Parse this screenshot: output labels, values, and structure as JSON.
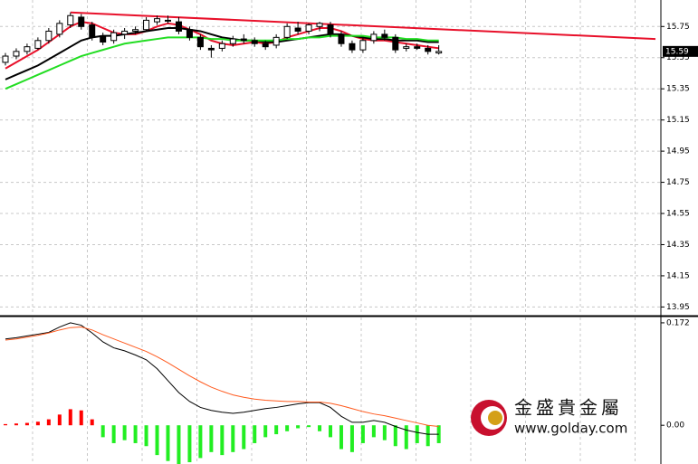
{
  "chart_data": [
    {
      "type": "candlestick",
      "xlim": [
        -0.5,
        60.5
      ],
      "ylim": [
        13.9,
        15.92
      ],
      "yticks": [
        15.75,
        15.55,
        15.35,
        15.15,
        14.95,
        14.75,
        14.55,
        14.35,
        14.15,
        13.95
      ],
      "grid": true,
      "up_color": "#ffffff",
      "down_color": "#000000",
      "wick_color": "#000000",
      "open": [
        15.52,
        15.56,
        15.59,
        15.61,
        15.66,
        15.7,
        15.76,
        15.81,
        15.76,
        15.69,
        15.66,
        15.7,
        15.72,
        15.73,
        15.78,
        15.79,
        15.78,
        15.73,
        15.68,
        15.61,
        15.61,
        15.64,
        15.67,
        15.66,
        15.64,
        15.63,
        15.68,
        15.74,
        15.72,
        15.75,
        15.76,
        15.7,
        15.64,
        15.6,
        15.66,
        15.7,
        15.68,
        15.61,
        15.62,
        15.61,
        15.58
      ],
      "high": [
        15.58,
        15.61,
        15.64,
        15.68,
        15.74,
        15.79,
        15.84,
        15.83,
        15.78,
        15.71,
        15.73,
        15.74,
        15.75,
        15.81,
        15.82,
        15.82,
        15.81,
        15.75,
        15.7,
        15.63,
        15.66,
        15.69,
        15.7,
        15.68,
        15.66,
        15.7,
        15.77,
        15.78,
        15.77,
        15.78,
        15.78,
        15.72,
        15.66,
        15.68,
        15.72,
        15.73,
        15.7,
        15.64,
        15.64,
        15.63,
        15.63
      ],
      "low": [
        15.5,
        15.54,
        15.57,
        15.6,
        15.64,
        15.68,
        15.74,
        15.73,
        15.66,
        15.63,
        15.64,
        15.67,
        15.7,
        15.72,
        15.76,
        15.77,
        15.7,
        15.66,
        15.6,
        15.55,
        15.59,
        15.62,
        15.64,
        15.62,
        15.6,
        15.61,
        15.67,
        15.7,
        15.7,
        15.72,
        15.68,
        15.62,
        15.58,
        15.58,
        15.64,
        15.66,
        15.58,
        15.59,
        15.6,
        15.57,
        15.57
      ],
      "close": [
        15.56,
        15.59,
        15.62,
        15.66,
        15.72,
        15.77,
        15.82,
        15.75,
        15.68,
        15.65,
        15.71,
        15.72,
        15.73,
        15.79,
        15.8,
        15.79,
        15.72,
        15.68,
        15.62,
        15.6,
        15.64,
        15.67,
        15.66,
        15.64,
        15.62,
        15.68,
        15.75,
        15.72,
        15.76,
        15.77,
        15.7,
        15.64,
        15.6,
        15.66,
        15.7,
        15.68,
        15.6,
        15.62,
        15.61,
        15.59,
        15.59
      ],
      "lines": [
        {
          "color": "#e8102a",
          "values": [
            15.48,
            15.52,
            15.56,
            15.6,
            15.65,
            15.7,
            15.75,
            15.78,
            15.77,
            15.74,
            15.71,
            15.7,
            15.7,
            15.72,
            15.75,
            15.77,
            15.76,
            15.73,
            15.7,
            15.66,
            15.64,
            15.63,
            15.64,
            15.65,
            15.64,
            15.65,
            15.68,
            15.7,
            15.72,
            15.74,
            15.74,
            15.72,
            15.69,
            15.67,
            15.66,
            15.66,
            15.65,
            15.64,
            15.63,
            15.62,
            15.61
          ]
        },
        {
          "color": "#000000",
          "values": [
            15.41,
            15.44,
            15.47,
            15.5,
            15.54,
            15.58,
            15.62,
            15.66,
            15.68,
            15.69,
            15.69,
            15.7,
            15.71,
            15.72,
            15.73,
            15.74,
            15.74,
            15.73,
            15.72,
            15.7,
            15.68,
            15.67,
            15.66,
            15.66,
            15.65,
            15.65,
            15.66,
            15.67,
            15.68,
            15.69,
            15.7,
            15.7,
            15.69,
            15.68,
            15.67,
            15.67,
            15.66,
            15.66,
            15.66,
            15.65,
            15.65
          ]
        },
        {
          "color": "#22dd22",
          "values": [
            15.35,
            15.38,
            15.41,
            15.44,
            15.47,
            15.5,
            15.53,
            15.56,
            15.58,
            15.6,
            15.62,
            15.64,
            15.65,
            15.66,
            15.67,
            15.68,
            15.68,
            15.68,
            15.68,
            15.67,
            15.67,
            15.66,
            15.66,
            15.66,
            15.66,
            15.66,
            15.67,
            15.67,
            15.68,
            15.68,
            15.69,
            15.69,
            15.69,
            15.69,
            15.68,
            15.68,
            15.68,
            15.67,
            15.67,
            15.66,
            15.66
          ]
        }
      ],
      "trendline": {
        "color": "#e8102a",
        "x": [
          6,
          60
        ],
        "values": [
          15.84,
          15.67
        ]
      }
    },
    {
      "type": "macd",
      "xlim": [
        -0.5,
        60.5
      ],
      "ylim": [
        -0.065,
        0.181
      ],
      "yticks": [
        0.172,
        {
          "value": 0,
          "label": "0.00"
        }
      ],
      "histogram": {
        "pos_color": "#ff0000",
        "neg_color": "#22ee22",
        "values": [
          0.002,
          0.003,
          0.004,
          0.006,
          0.01,
          0.018,
          0.027,
          0.025,
          0.01,
          -0.02,
          -0.03,
          -0.025,
          -0.03,
          -0.035,
          -0.05,
          -0.06,
          -0.065,
          -0.062,
          -0.055,
          -0.045,
          -0.05,
          -0.045,
          -0.04,
          -0.03,
          -0.02,
          -0.015,
          -0.01,
          -0.005,
          -0.003,
          -0.01,
          -0.02,
          -0.04,
          -0.045,
          -0.03,
          -0.02,
          -0.025,
          -0.035,
          -0.04,
          -0.03,
          -0.035,
          -0.03
        ]
      },
      "lines": [
        {
          "color": "#000000",
          "values": [
            0.145,
            0.147,
            0.15,
            0.153,
            0.156,
            0.165,
            0.172,
            0.168,
            0.155,
            0.14,
            0.13,
            0.125,
            0.118,
            0.11,
            0.095,
            0.075,
            0.055,
            0.04,
            0.03,
            0.025,
            0.022,
            0.02,
            0.022,
            0.025,
            0.028,
            0.03,
            0.033,
            0.036,
            0.038,
            0.038,
            0.03,
            0.015,
            0.005,
            0.005,
            0.008,
            0.005,
            -0.002,
            -0.008,
            -0.012,
            -0.015,
            -0.015
          ]
        },
        {
          "color": "#ff5a1e",
          "values": [
            0.143,
            0.145,
            0.148,
            0.151,
            0.155,
            0.16,
            0.164,
            0.165,
            0.16,
            0.152,
            0.145,
            0.138,
            0.131,
            0.124,
            0.115,
            0.105,
            0.094,
            0.083,
            0.073,
            0.064,
            0.057,
            0.051,
            0.047,
            0.044,
            0.042,
            0.041,
            0.04,
            0.04,
            0.039,
            0.039,
            0.037,
            0.033,
            0.028,
            0.023,
            0.019,
            0.016,
            0.012,
            0.008,
            0.004,
            0.0,
            -0.002
          ]
        }
      ]
    }
  ],
  "watermark": {
    "name": "金盛貴金屬",
    "url": "www.golday.com"
  }
}
